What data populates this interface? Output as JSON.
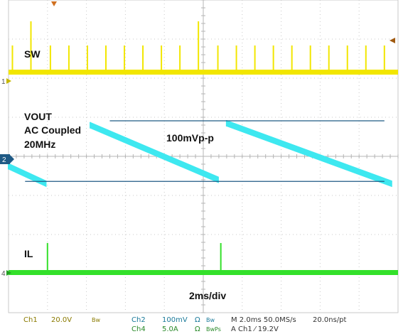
{
  "chart_data": {
    "type": "line",
    "title": "",
    "xlabel": "",
    "ylabel": "",
    "timebase_label": "2ms/div",
    "measurement_label": "100mVp-p",
    "x_unit": "ms",
    "xlim": [
      0,
      20
    ],
    "switching_events_ms": [
      0.2,
      1.15,
      2.15,
      3.1,
      4.05,
      5.0,
      5.95,
      6.9,
      7.85,
      8.8,
      9.75,
      10.75,
      11.7,
      12.65,
      13.6,
      14.55,
      15.5,
      16.45,
      17.4,
      18.35,
      19.3
    ],
    "series": [
      {
        "name": "SW",
        "channel": "1",
        "color": "#f2e600",
        "description_values": {
          "baseline_div": -0.3,
          "spike_div": 1.1
        }
      },
      {
        "name": "VOUT",
        "channel": "2",
        "color": "#3ee8f0",
        "note_lines": [
          "VOUT",
          "AC Coupled",
          "20MHz"
        ],
        "amplitude_mVpp": 100,
        "ramp_start_ms": [
          0.0,
          4.2,
          11.2
        ],
        "ramp_end_ms": [
          1.95,
          10.8,
          19.7
        ],
        "ramp_high_div": [
          -0.1,
          0.95,
          1.0
        ],
        "ramp_low_div": [
          -0.55,
          -0.45,
          -0.55
        ]
      },
      {
        "name": "IL",
        "channel": "4",
        "color": "#33e02a",
        "spike_ms": [
          2.0,
          10.9
        ]
      }
    ]
  },
  "markers": {
    "ch1": "1",
    "ch2": "2",
    "ch4": "4"
  },
  "status_bar": {
    "ch1_name": "Ch1",
    "ch1_scale": "20.0V",
    "ch1_bw": "Bw",
    "ch2_name": "Ch2",
    "ch2_scale": "100mV",
    "ch2_imp": "Ω",
    "ch2_bw": "Bw",
    "ch4_name": "Ch4",
    "ch4_scale": "5.0A",
    "ch4_imp": "Ω",
    "ch4_bw": "BwPs",
    "timebase": "M 2.0ms 50.0MS/s",
    "record": "20.0ns/pt",
    "trigger": "A  Ch1  ⁄  19.2V"
  },
  "colors": {
    "grid": "#c9c9c9",
    "marker_line": "#1f5a85",
    "ch1": "#f2e600",
    "ch2": "#3ee8f0",
    "ch4": "#33e02a",
    "trigger_marker": "#d07020"
  }
}
